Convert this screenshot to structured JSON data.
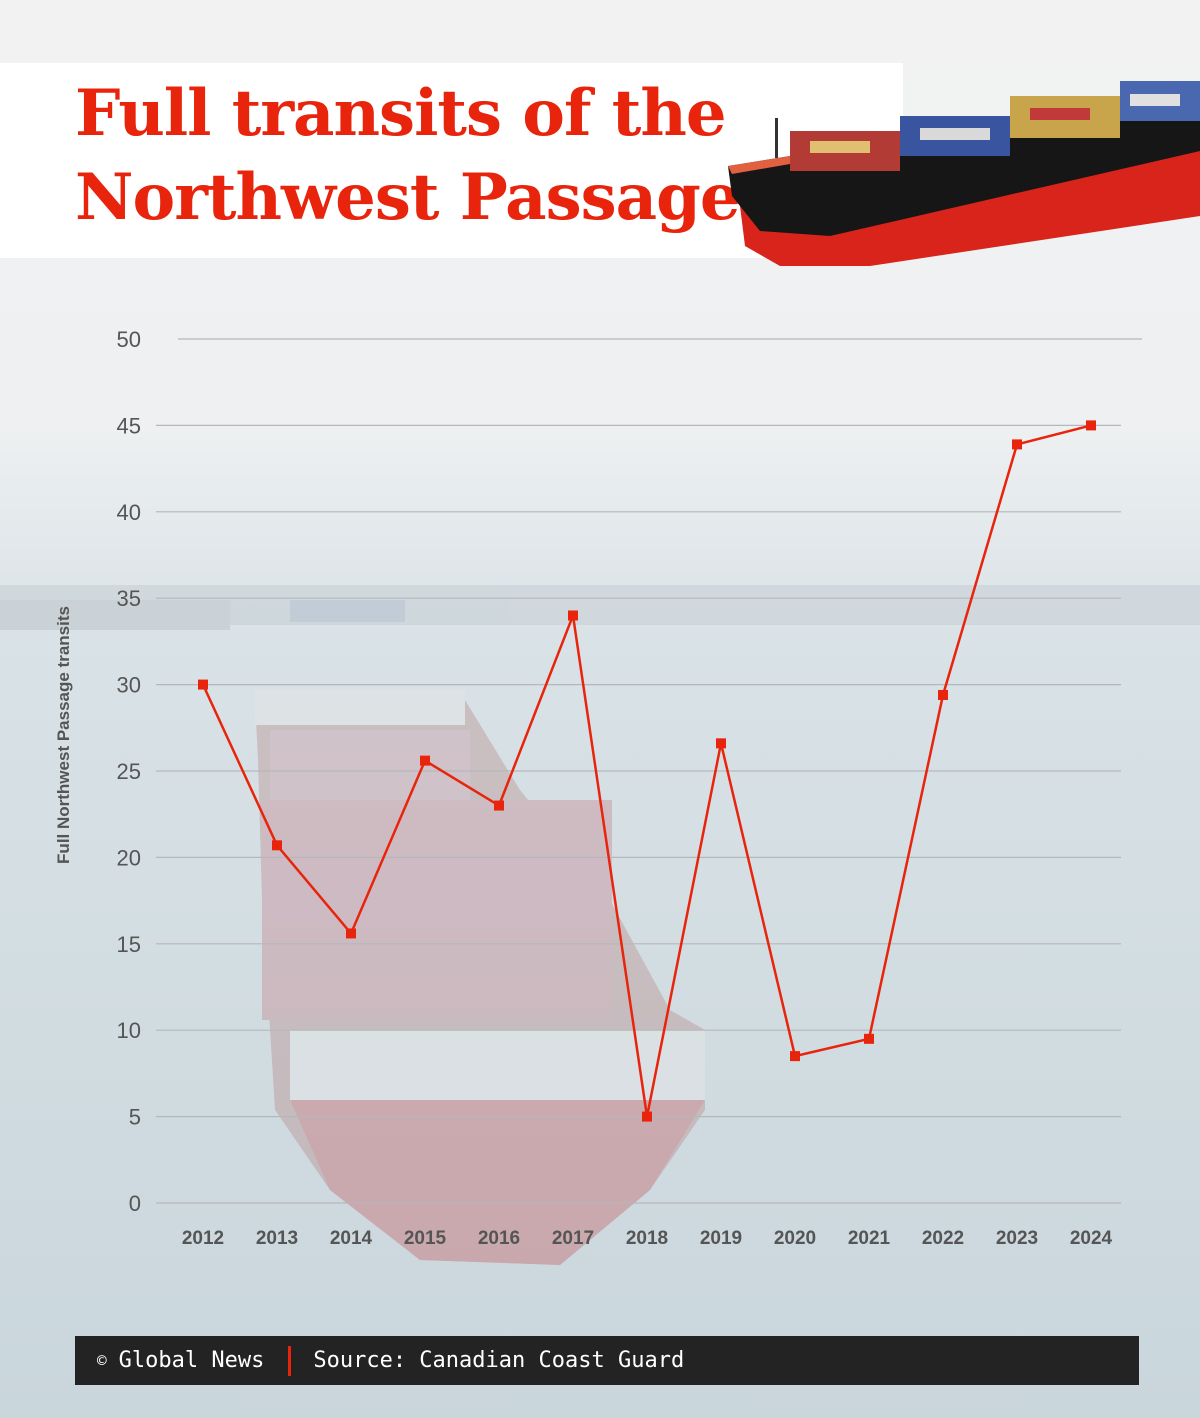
{
  "title_line1": "Full transits of the",
  "title_line2": "Northwest Passage",
  "footer": {
    "copyright_symbol": "©",
    "brand": "Global News",
    "source": "Source: Canadian Coast Guard"
  },
  "colors": {
    "accent": "#e8240c",
    "grid": "#b5b8ba",
    "footer_bg": "#232323"
  },
  "chart_data": {
    "type": "line",
    "x": [
      "2012",
      "2013",
      "2014",
      "2015",
      "2016",
      "2017",
      "2018",
      "2019",
      "2020",
      "2021",
      "2022",
      "2023",
      "2024"
    ],
    "series": [
      {
        "values": [
          30,
          20.7,
          15.6,
          25.6,
          23,
          34,
          5,
          26.6,
          8.5,
          9.5,
          29.4,
          43.9,
          45
        ],
        "color": "#e8240c"
      }
    ],
    "title": "Full transits of the Northwest Passage",
    "xlabel": "",
    "ylabel": "Full Northwest Passage transits",
    "ylim": [
      0,
      50
    ],
    "yticks": [
      "0",
      "5",
      "10",
      "15",
      "20",
      "25",
      "30",
      "35",
      "40",
      "45",
      "50"
    ],
    "grid": true,
    "legend": "none",
    "marker": "square"
  }
}
